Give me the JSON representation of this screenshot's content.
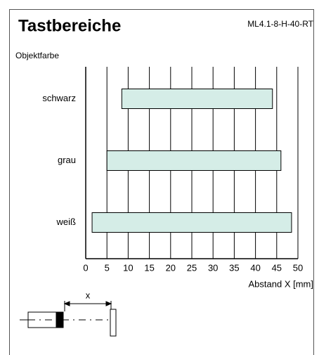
{
  "chart_data": {
    "type": "range-bar",
    "title": "Tastbereiche",
    "subtitle": "ML4.1-8-H-40-RT",
    "ylabel": "Objektfarbe",
    "xlabel": "Abstand X [mm]",
    "categories": [
      "schwarz",
      "grau",
      "weiß"
    ],
    "ranges": [
      [
        8.5,
        44
      ],
      [
        5,
        46
      ],
      [
        1.5,
        48.5
      ]
    ],
    "color": "#d5ede7",
    "xlim": [
      0,
      50
    ],
    "xticks": [
      0,
      5,
      10,
      15,
      20,
      25,
      30,
      35,
      40,
      45,
      50
    ],
    "grid": true,
    "diagram_label": "x"
  }
}
